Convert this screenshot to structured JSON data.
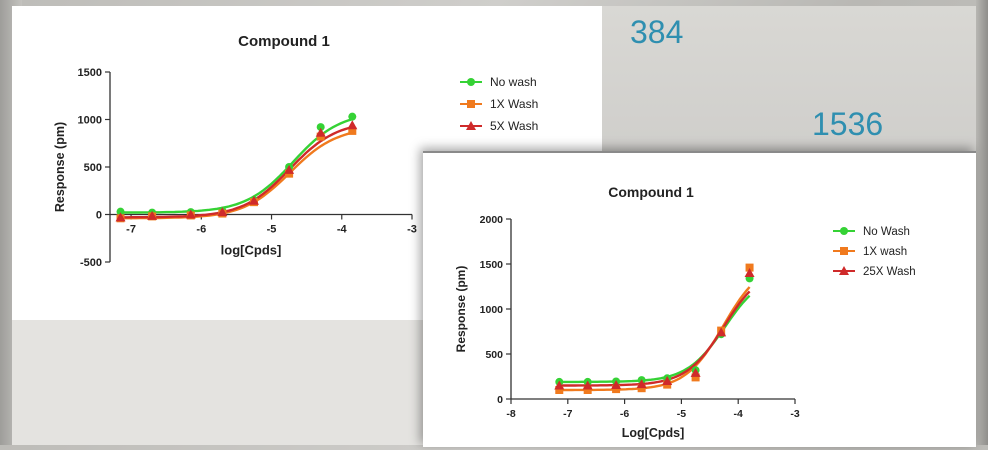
{
  "panel_labels": [
    "384",
    "1536"
  ],
  "colors": {
    "no_wash": "#35d235",
    "one_x": "#f07a1e",
    "multi": "#cf2a2a",
    "accent_text": "#2f8fb0"
  },
  "chart_data": [
    {
      "type": "scatter",
      "title": "Compound 1",
      "xlabel": "log[Cpds]",
      "ylabel": "Response (pm)",
      "xlim": [
        -7.3,
        -3
      ],
      "ylim": [
        -500,
        1500
      ],
      "xticks": [
        -7,
        -6,
        -5,
        -4,
        -3
      ],
      "yticks": [
        -500,
        0,
        500,
        1000,
        1500
      ],
      "legend_position": "right",
      "grid": false,
      "series": [
        {
          "name": "No wash",
          "marker": "circle",
          "color": "#35d235",
          "x": [
            -7.15,
            -6.7,
            -6.15,
            -5.7,
            -5.25,
            -4.75,
            -4.3,
            -3.85
          ],
          "y": [
            30,
            20,
            25,
            40,
            150,
            500,
            920,
            1030
          ]
        },
        {
          "name": "1X Wash",
          "marker": "square",
          "color": "#f07a1e",
          "x": [
            -7.15,
            -6.7,
            -6.15,
            -5.7,
            -5.25,
            -4.75,
            -4.3,
            -3.85
          ],
          "y": [
            -40,
            -20,
            -10,
            10,
            130,
            430,
            820,
            880
          ]
        },
        {
          "name": "5X Wash",
          "marker": "triangle",
          "color": "#cf2a2a",
          "x": [
            -7.15,
            -6.7,
            -6.15,
            -5.7,
            -5.25,
            -4.75,
            -4.3,
            -3.85
          ],
          "y": [
            -30,
            -15,
            0,
            25,
            145,
            470,
            860,
            940
          ]
        }
      ]
    },
    {
      "type": "scatter",
      "title": "Compound 1",
      "xlabel": "Log[Cpds]",
      "ylabel": "Response (pm)",
      "xlim": [
        -8,
        -3
      ],
      "ylim": [
        0,
        2000
      ],
      "xticks": [
        -8,
        -7,
        -6,
        -5,
        -4,
        -3
      ],
      "yticks": [
        0,
        500,
        1000,
        1500,
        2000
      ],
      "legend_position": "right",
      "grid": false,
      "series": [
        {
          "name": "No Wash",
          "marker": "circle",
          "color": "#35d235",
          "x": [
            -7.15,
            -6.65,
            -6.15,
            -5.7,
            -5.25,
            -4.75,
            -4.3,
            -3.8
          ],
          "y": [
            190,
            190,
            195,
            210,
            230,
            320,
            720,
            1340
          ]
        },
        {
          "name": "1X wash",
          "marker": "square",
          "color": "#f07a1e",
          "x": [
            -7.15,
            -6.65,
            -6.15,
            -5.7,
            -5.25,
            -4.75,
            -4.3,
            -3.8
          ],
          "y": [
            100,
            100,
            110,
            120,
            160,
            240,
            760,
            1460
          ]
        },
        {
          "name": "25X Wash",
          "marker": "triangle",
          "color": "#cf2a2a",
          "x": [
            -7.15,
            -6.65,
            -6.15,
            -5.7,
            -5.25,
            -4.75,
            -4.3,
            -3.8
          ],
          "y": [
            150,
            150,
            155,
            165,
            200,
            290,
            740,
            1400
          ]
        }
      ]
    }
  ]
}
